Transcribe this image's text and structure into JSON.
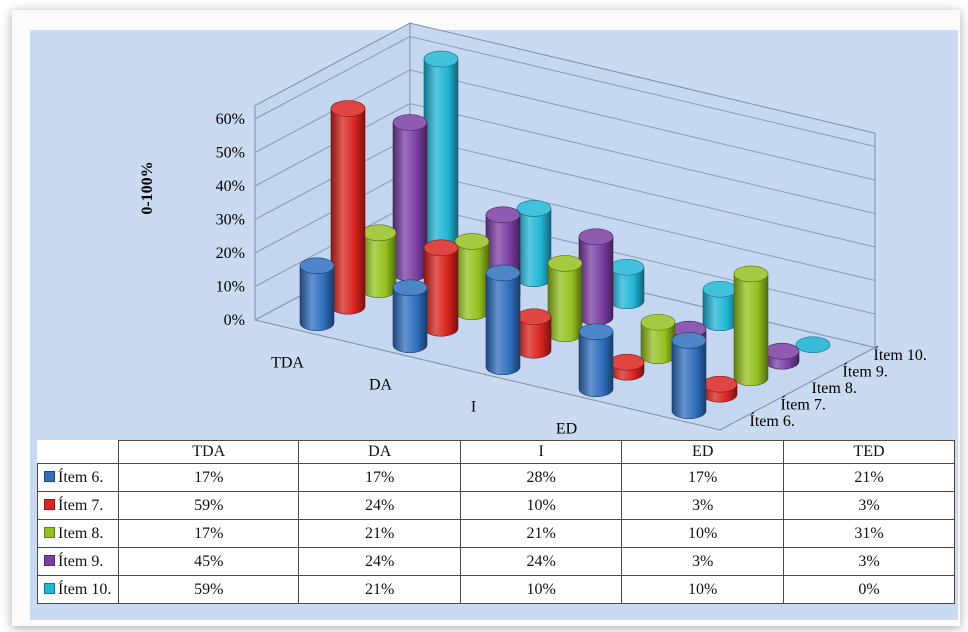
{
  "chart_data": {
    "type": "bar3d",
    "categories": [
      "TDA",
      "DA",
      "I",
      "ED",
      "TED"
    ],
    "series": [
      {
        "name": "Ítem 6.",
        "color": "#2f6fbe",
        "values": [
          17,
          17,
          28,
          17,
          21
        ]
      },
      {
        "name": "Ítem 7.",
        "color": "#d9241f",
        "values": [
          59,
          24,
          10,
          3,
          3
        ]
      },
      {
        "name": "Item 8.",
        "color": "#95c11f",
        "values": [
          17,
          21,
          21,
          10,
          31
        ]
      },
      {
        "name": "Ítem 9.",
        "color": "#7a3ea3",
        "values": [
          45,
          24,
          24,
          3,
          3
        ]
      },
      {
        "name": "Ítem 10.",
        "color": "#21b6d6",
        "values": [
          59,
          21,
          10,
          10,
          0
        ]
      }
    ],
    "ylabel": "0-100%",
    "yticks": [
      "0%",
      "10%",
      "20%",
      "30%",
      "40%",
      "50%",
      "60%"
    ],
    "ylim": [
      0,
      60
    ],
    "unit": "%",
    "grid": true,
    "legend": "data-table"
  }
}
